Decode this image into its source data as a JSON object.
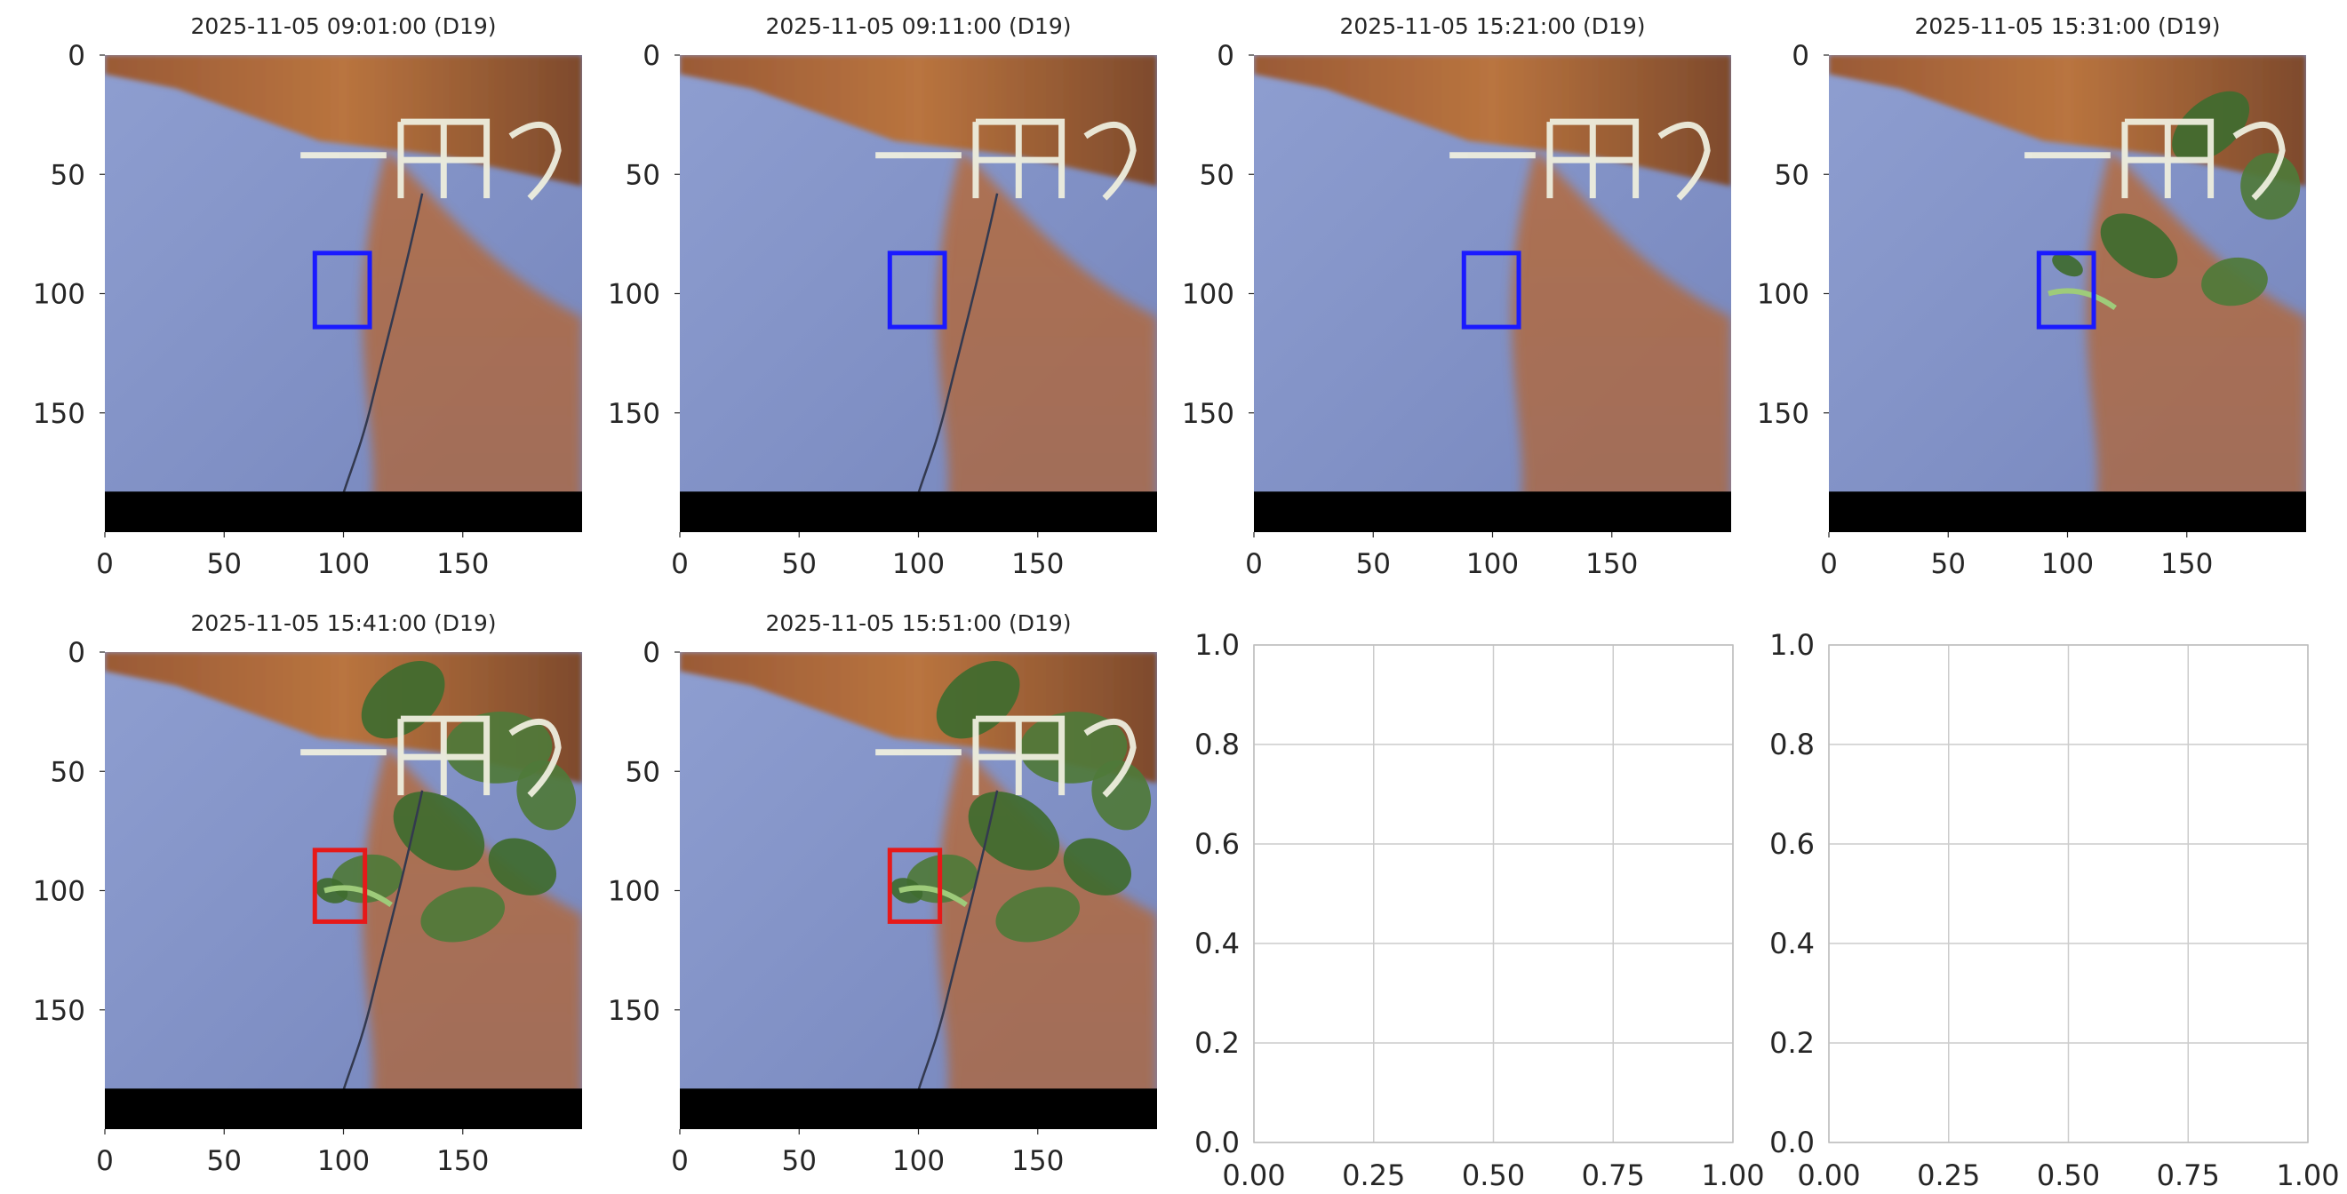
{
  "colors": {
    "box_blue": "#1a1aff",
    "box_red": "#e61919",
    "grid": "#cccccc",
    "axes_edge": "#bfbfbf",
    "black_band": "#000000",
    "text": "#262626"
  },
  "chart_data": [
    {
      "type": "image",
      "title": "2025-11-05 09:01:00 (D19)",
      "xticks": [
        "0",
        "50",
        "100",
        "150"
      ],
      "yticks": [
        "0",
        "50",
        "100",
        "150"
      ],
      "box": {
        "x0": 88,
        "y0": 83,
        "x1": 111,
        "y1": 114,
        "color": "blue"
      },
      "scene": {
        "vegetation": "none",
        "crack": true
      }
    },
    {
      "type": "image",
      "title": "2025-11-05 09:11:00 (D19)",
      "xticks": [
        "0",
        "50",
        "100",
        "150"
      ],
      "yticks": [
        "0",
        "50",
        "100",
        "150"
      ],
      "box": {
        "x0": 88,
        "y0": 83,
        "x1": 111,
        "y1": 114,
        "color": "blue"
      },
      "scene": {
        "vegetation": "none",
        "crack": true
      }
    },
    {
      "type": "image",
      "title": "2025-11-05 15:21:00 (D19)",
      "xticks": [
        "0",
        "50",
        "100",
        "150"
      ],
      "yticks": [
        "0",
        "50",
        "100",
        "150"
      ],
      "box": {
        "x0": 88,
        "y0": 83,
        "x1": 111,
        "y1": 114,
        "color": "blue"
      },
      "scene": {
        "vegetation": "none",
        "crack": false
      }
    },
    {
      "type": "image",
      "title": "2025-11-05 15:31:00 (D19)",
      "xticks": [
        "0",
        "50",
        "100",
        "150"
      ],
      "yticks": [
        "0",
        "50",
        "100",
        "150"
      ],
      "box": {
        "x0": 88,
        "y0": 83,
        "x1": 111,
        "y1": 114,
        "color": "blue"
      },
      "scene": {
        "vegetation": "partial",
        "crack": false
      }
    },
    {
      "type": "image",
      "title": "2025-11-05 15:41:00 (D19)",
      "xticks": [
        "0",
        "50",
        "100",
        "150"
      ],
      "yticks": [
        "0",
        "50",
        "100",
        "150"
      ],
      "box": {
        "x0": 88,
        "y0": 83,
        "x1": 109,
        "y1": 113,
        "color": "red"
      },
      "scene": {
        "vegetation": "dense",
        "crack": true
      }
    },
    {
      "type": "image",
      "title": "2025-11-05 15:51:00 (D19)",
      "xticks": [
        "0",
        "50",
        "100",
        "150"
      ],
      "yticks": [
        "0",
        "50",
        "100",
        "150"
      ],
      "box": {
        "x0": 88,
        "y0": 83,
        "x1": 109,
        "y1": 113,
        "color": "red"
      },
      "scene": {
        "vegetation": "dense",
        "crack": true
      }
    },
    {
      "type": "empty",
      "title": "",
      "xlim": [
        0,
        1
      ],
      "ylim": [
        0,
        1
      ],
      "xticks": [
        "0.00",
        "0.25",
        "0.50",
        "0.75",
        "1.00"
      ],
      "yticks": [
        "0.0",
        "0.2",
        "0.4",
        "0.6",
        "0.8",
        "1.0"
      ],
      "grid": true
    },
    {
      "type": "empty",
      "title": "",
      "xlim": [
        0,
        1
      ],
      "ylim": [
        0,
        1
      ],
      "xticks": [
        "0.00",
        "0.25",
        "0.50",
        "0.75",
        "1.00"
      ],
      "yticks": [
        "0.0",
        "0.2",
        "0.4",
        "0.6",
        "0.8",
        "1.0"
      ],
      "grid": true
    }
  ]
}
